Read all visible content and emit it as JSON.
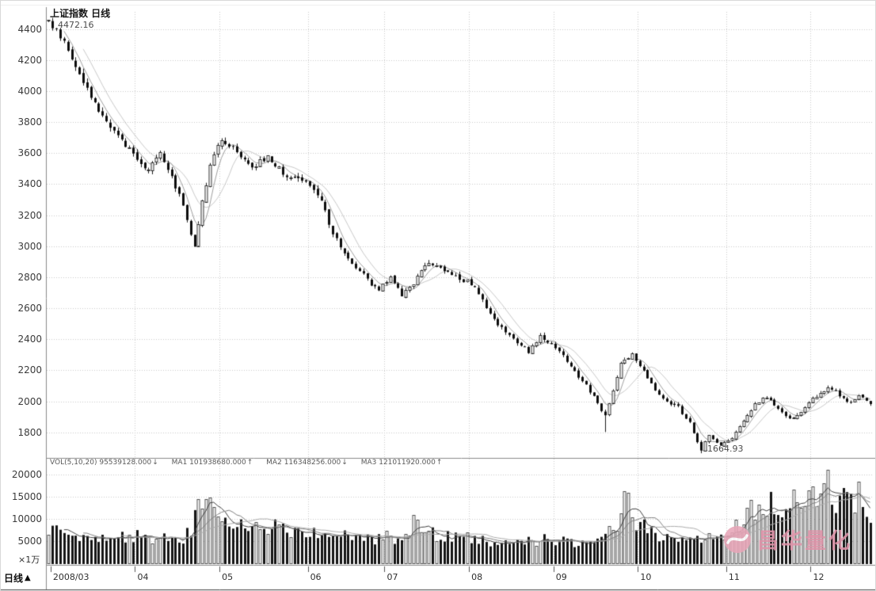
{
  "window": {
    "title": "上证指数 日线"
  },
  "colors": {
    "up_fill": "#ffffff",
    "up_border": "#2e2e2e",
    "down_fill": "#0d0d0d",
    "wick": "#1a1a1a",
    "grid": "#c9c9c9",
    "axis_line": "#8a8a8a",
    "price_ma": [
      "#6a6a6a",
      "#ababab"
    ],
    "volume_ma": [
      "#3f3f3f",
      "#7f7f7f",
      "#ababab"
    ],
    "watermark_pink": "#e193a9"
  },
  "chart_data": {
    "type": "candlestick",
    "title": "上证指数 日线",
    "period_label": "日线",
    "high_annotation": "4472.16",
    "low_annotation": "1664.93",
    "price_axis": {
      "min": 1640,
      "max": 4490,
      "ticks": [
        4400,
        4200,
        4000,
        3800,
        3600,
        3400,
        3200,
        3000,
        2800,
        2600,
        2400,
        2200,
        2000,
        1800
      ]
    },
    "x_axis": {
      "labels": [
        "2008/03",
        "04",
        "05",
        "06",
        "07",
        "08",
        "09",
        "10",
        "11",
        "12"
      ],
      "month_days": [
        1,
        23,
        45,
        68,
        88,
        110,
        132,
        154,
        177,
        199
      ]
    },
    "candles": {
      "count": 215,
      "seed": 20080303,
      "close_anchors": [
        [
          0,
          4440
        ],
        [
          2,
          4390
        ],
        [
          5,
          4270
        ],
        [
          8,
          4100
        ],
        [
          12,
          3920
        ],
        [
          16,
          3760
        ],
        [
          20,
          3650
        ],
        [
          23,
          3560
        ],
        [
          26,
          3480
        ],
        [
          29,
          3600
        ],
        [
          32,
          3440
        ],
        [
          35,
          3280
        ],
        [
          37,
          3070
        ],
        [
          38,
          3000
        ],
        [
          40,
          3290
        ],
        [
          42,
          3520
        ],
        [
          45,
          3690
        ],
        [
          49,
          3620
        ],
        [
          53,
          3510
        ],
        [
          57,
          3580
        ],
        [
          61,
          3470
        ],
        [
          65,
          3440
        ],
        [
          68,
          3400
        ],
        [
          71,
          3280
        ],
        [
          74,
          3090
        ],
        [
          77,
          2950
        ],
        [
          80,
          2870
        ],
        [
          83,
          2780
        ],
        [
          86,
          2720
        ],
        [
          89,
          2800
        ],
        [
          92,
          2690
        ],
        [
          95,
          2760
        ],
        [
          99,
          2900
        ],
        [
          103,
          2850
        ],
        [
          107,
          2790
        ],
        [
          110,
          2760
        ],
        [
          113,
          2650
        ],
        [
          116,
          2530
        ],
        [
          119,
          2440
        ],
        [
          122,
          2380
        ],
        [
          125,
          2320
        ],
        [
          128,
          2420
        ],
        [
          131,
          2360
        ],
        [
          134,
          2290
        ],
        [
          137,
          2190
        ],
        [
          140,
          2100
        ],
        [
          143,
          1990
        ],
        [
          145,
          1900
        ],
        [
          147,
          2080
        ],
        [
          149,
          2240
        ],
        [
          152,
          2300
        ],
        [
          155,
          2190
        ],
        [
          158,
          2070
        ],
        [
          161,
          2000
        ],
        [
          164,
          1960
        ],
        [
          167,
          1860
        ],
        [
          169,
          1740
        ],
        [
          170,
          1690
        ],
        [
          172,
          1780
        ],
        [
          175,
          1710
        ],
        [
          178,
          1770
        ],
        [
          181,
          1880
        ],
        [
          184,
          1980
        ],
        [
          187,
          2030
        ],
        [
          190,
          1950
        ],
        [
          193,
          1880
        ],
        [
          196,
          1940
        ],
        [
          199,
          2020
        ],
        [
          203,
          2090
        ],
        [
          206,
          2040
        ],
        [
          209,
          1990
        ],
        [
          211,
          2050
        ],
        [
          214,
          1990
        ]
      ],
      "high_overrides": [
        [
          1,
          4472.16
        ]
      ],
      "low_overrides": [
        [
          145,
          1802
        ],
        [
          170,
          1664.93
        ]
      ]
    },
    "volume": {
      "max": 21500,
      "ticks": [
        20000,
        15000,
        10000,
        5000
      ],
      "unit_label": "×1万",
      "ma_periods": [
        5,
        10,
        20
      ],
      "anchors": [
        [
          0,
          7800
        ],
        [
          4,
          7000
        ],
        [
          8,
          6600
        ],
        [
          12,
          6200
        ],
        [
          16,
          6600
        ],
        [
          20,
          6000
        ],
        [
          24,
          6300
        ],
        [
          28,
          5800
        ],
        [
          32,
          6200
        ],
        [
          35,
          5600
        ],
        [
          37,
          8200
        ],
        [
          39,
          16300
        ],
        [
          40,
          11500
        ],
        [
          42,
          13600
        ],
        [
          44,
          10500
        ],
        [
          48,
          9600
        ],
        [
          52,
          8600
        ],
        [
          56,
          7900
        ],
        [
          60,
          8300
        ],
        [
          64,
          7300
        ],
        [
          68,
          6600
        ],
        [
          72,
          6900
        ],
        [
          76,
          6200
        ],
        [
          80,
          5700
        ],
        [
          84,
          5300
        ],
        [
          88,
          5900
        ],
        [
          92,
          5500
        ],
        [
          95,
          9600
        ],
        [
          98,
          7100
        ],
        [
          102,
          6300
        ],
        [
          106,
          5900
        ],
        [
          110,
          5500
        ],
        [
          114,
          5100
        ],
        [
          118,
          4900
        ],
        [
          122,
          5300
        ],
        [
          126,
          4900
        ],
        [
          130,
          5500
        ],
        [
          134,
          5100
        ],
        [
          138,
          4700
        ],
        [
          142,
          5300
        ],
        [
          145,
          6600
        ],
        [
          147,
          8600
        ],
        [
          149,
          10500
        ],
        [
          151,
          16000
        ],
        [
          153,
          9600
        ],
        [
          156,
          7100
        ],
        [
          159,
          6100
        ],
        [
          162,
          5600
        ],
        [
          165,
          5100
        ],
        [
          168,
          4900
        ],
        [
          170,
          5700
        ],
        [
          173,
          6300
        ],
        [
          176,
          7100
        ],
        [
          179,
          8600
        ],
        [
          182,
          10200
        ],
        [
          184,
          12600
        ],
        [
          186,
          11200
        ],
        [
          188,
          13600
        ],
        [
          190,
          9800
        ],
        [
          192,
          11600
        ],
        [
          194,
          17000
        ],
        [
          196,
          12200
        ],
        [
          198,
          13200
        ],
        [
          200,
          15600
        ],
        [
          203,
          20600
        ],
        [
          205,
          14600
        ],
        [
          207,
          17600
        ],
        [
          209,
          13200
        ],
        [
          211,
          16200
        ],
        [
          213,
          12600
        ],
        [
          214,
          11200
        ]
      ]
    },
    "indicator_row": {
      "label": "VOL(5,10,20)",
      "value": "95539128.000",
      "arrow": "↓",
      "mas": [
        {
          "label": "MA1",
          "value": "101938680.000",
          "arrow": "↑"
        },
        {
          "label": "MA2",
          "value": "116348256.000",
          "arrow": "↓"
        },
        {
          "label": "MA3",
          "value": "121011920.000",
          "arrow": "↑"
        }
      ]
    }
  },
  "bottom_bar": {
    "period_label": "日线",
    "triangle": "▲"
  },
  "watermark": {
    "text": "昌华量化",
    "color": "#e193a9"
  }
}
